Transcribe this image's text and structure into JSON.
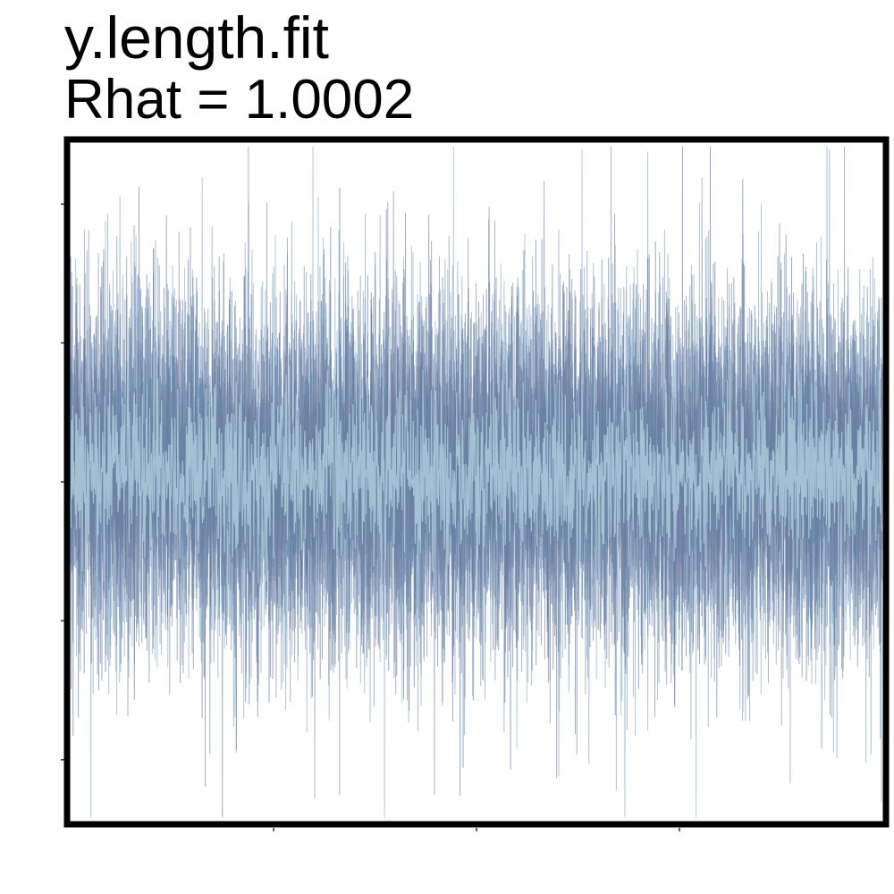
{
  "chart_data": {
    "type": "line",
    "title": "y.length.fit",
    "subtitle": "Rhat = 1.0002",
    "xlabel": "",
    "ylabel": "",
    "xlim": [
      0,
      4000
    ],
    "ylim": [
      -1,
      1
    ],
    "grid": false,
    "legend": "none",
    "series_count": 4,
    "iterations": 4000,
    "center": 0.03,
    "spread": 0.12
  },
  "colors": {
    "chain_1": "#a9c4d6",
    "chain_2": "#6a8fb6",
    "chain_3": "#4a6a9a",
    "chain_4": "#6e7898",
    "highlight": "#e8f6f8",
    "frame": "#000000",
    "background": "#ffffff"
  }
}
